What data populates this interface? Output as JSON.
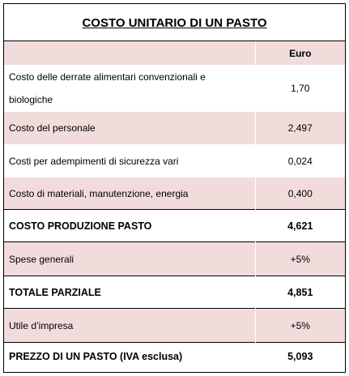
{
  "title": "COSTO UNITARIO DI UN PASTO",
  "table": {
    "unit_header": "Euro",
    "rows": [
      [
        "Costo delle derrate alimentari convenzionali e biologiche",
        "1,70"
      ],
      [
        "Costo del personale",
        "2,497"
      ],
      [
        "Costi per adempimenti di sicurezza vari",
        "0,024"
      ],
      [
        "Costo di materiali, manutenzione, energia",
        "0,400"
      ],
      [
        "COSTO PRODUZIONE PASTO",
        "4,621"
      ],
      [
        "Spese generali",
        "+5%"
      ],
      [
        "TOTALE PARZIALE",
        "4,851"
      ],
      [
        "Utile d’impresa",
        "+5%"
      ],
      [
        "PREZZO DI UN PASTO (IVA esclusa)",
        "5,093"
      ]
    ]
  }
}
